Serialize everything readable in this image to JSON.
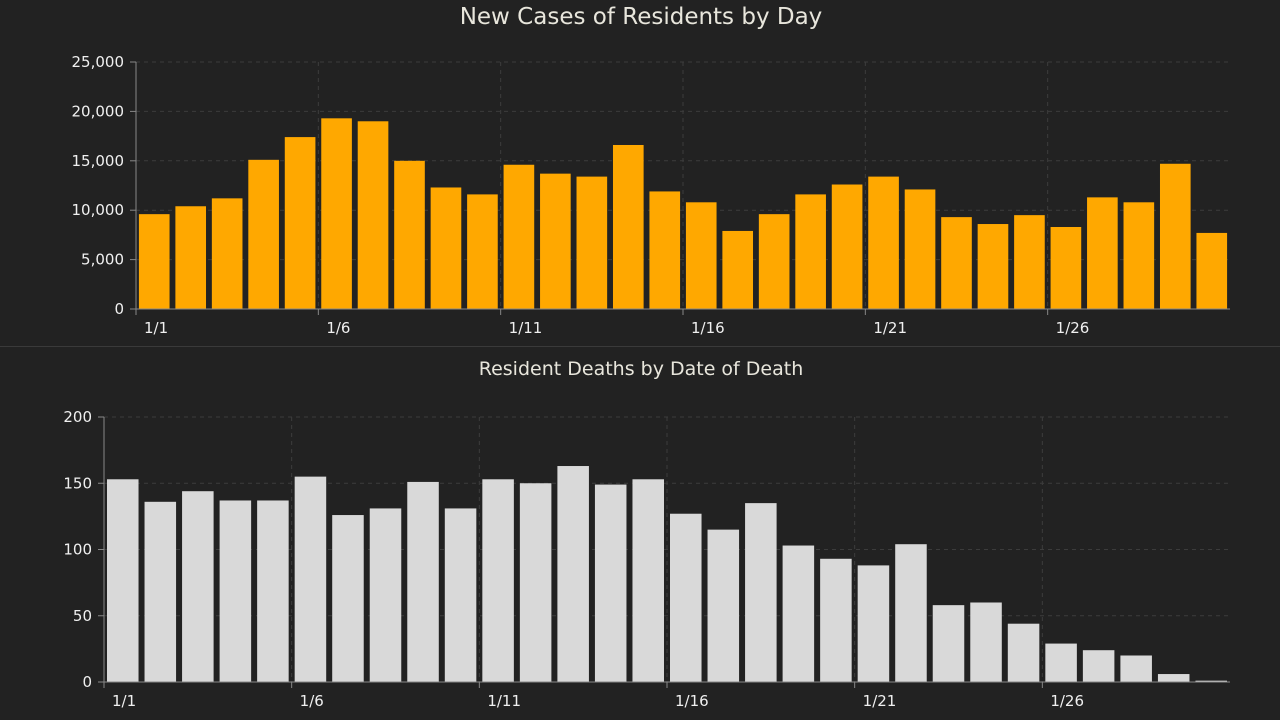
{
  "colors": {
    "background": "#222222",
    "cases_bar": "#ffa800",
    "deaths_bar": "#d9d9d9",
    "grid": "#3c3c3c",
    "axis": "#888888"
  },
  "chart_data": [
    {
      "type": "bar",
      "title": "New Cases of Residents by Day",
      "x": [
        "1/1",
        "1/2",
        "1/3",
        "1/4",
        "1/5",
        "1/6",
        "1/7",
        "1/8",
        "1/9",
        "1/10",
        "1/11",
        "1/12",
        "1/13",
        "1/14",
        "1/15",
        "1/16",
        "1/17",
        "1/18",
        "1/19",
        "1/20",
        "1/21",
        "1/22",
        "1/23",
        "1/24",
        "1/25",
        "1/26",
        "1/27",
        "1/28",
        "1/29",
        "1/30"
      ],
      "x_tick_labels": [
        "1/1",
        "1/6",
        "1/11",
        "1/16",
        "1/21",
        "1/26"
      ],
      "values": [
        9600,
        10400,
        11200,
        15100,
        17400,
        19300,
        19000,
        15000,
        12300,
        11600,
        14600,
        13700,
        13400,
        16600,
        11900,
        10800,
        7900,
        9600,
        11600,
        12600,
        13400,
        12100,
        9300,
        8600,
        9500,
        8300,
        11300,
        10800,
        14700,
        7700
      ],
      "ylim": [
        0,
        25000
      ],
      "y_ticks": [
        "0",
        "5,000",
        "10,000",
        "15,000",
        "20,000",
        "25,000"
      ],
      "grid": true,
      "legend": "none"
    },
    {
      "type": "bar",
      "title": "Resident Deaths by Date of Death",
      "x": [
        "1/1",
        "1/2",
        "1/3",
        "1/4",
        "1/5",
        "1/6",
        "1/7",
        "1/8",
        "1/9",
        "1/10",
        "1/11",
        "1/12",
        "1/13",
        "1/14",
        "1/15",
        "1/16",
        "1/17",
        "1/18",
        "1/19",
        "1/20",
        "1/21",
        "1/22",
        "1/23",
        "1/24",
        "1/25",
        "1/26",
        "1/27",
        "1/28",
        "1/29",
        "1/30"
      ],
      "x_tick_labels": [
        "1/1",
        "1/6",
        "1/11",
        "1/16",
        "1/21",
        "1/26"
      ],
      "values": [
        153,
        136,
        144,
        137,
        137,
        155,
        126,
        131,
        151,
        131,
        153,
        150,
        163,
        149,
        153,
        127,
        115,
        135,
        103,
        93,
        88,
        104,
        58,
        60,
        44,
        29,
        24,
        20,
        6,
        1
      ],
      "ylim": [
        0,
        200
      ],
      "y_ticks": [
        "0",
        "50",
        "100",
        "150",
        "200"
      ],
      "grid": true,
      "legend": "none"
    }
  ]
}
